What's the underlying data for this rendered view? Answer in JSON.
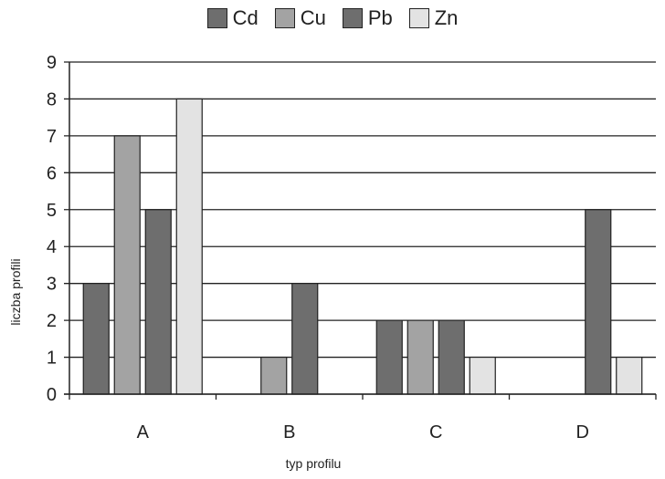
{
  "chart_data": {
    "type": "bar",
    "title": "",
    "xlabel": "typ profilu",
    "ylabel": "liczba profili",
    "categories": [
      "A",
      "B",
      "C",
      "D"
    ],
    "ylim": [
      0,
      9
    ],
    "yticks": [
      "0",
      "1",
      "2",
      "3",
      "4",
      "5",
      "6",
      "7",
      "8",
      "9"
    ],
    "grid": true,
    "legend_position": "top-center",
    "series": [
      {
        "name": "Cd",
        "color": "#6e6e6e",
        "values": [
          3,
          0,
          2,
          0
        ]
      },
      {
        "name": "Cu",
        "color": "#a3a3a3",
        "values": [
          7,
          1,
          2,
          0
        ]
      },
      {
        "name": "Pb",
        "color": "#6e6e6e",
        "values": [
          5,
          3,
          2,
          5
        ]
      },
      {
        "name": "Zn",
        "color": "#e3e3e3",
        "values": [
          8,
          0,
          1,
          1
        ]
      }
    ]
  }
}
